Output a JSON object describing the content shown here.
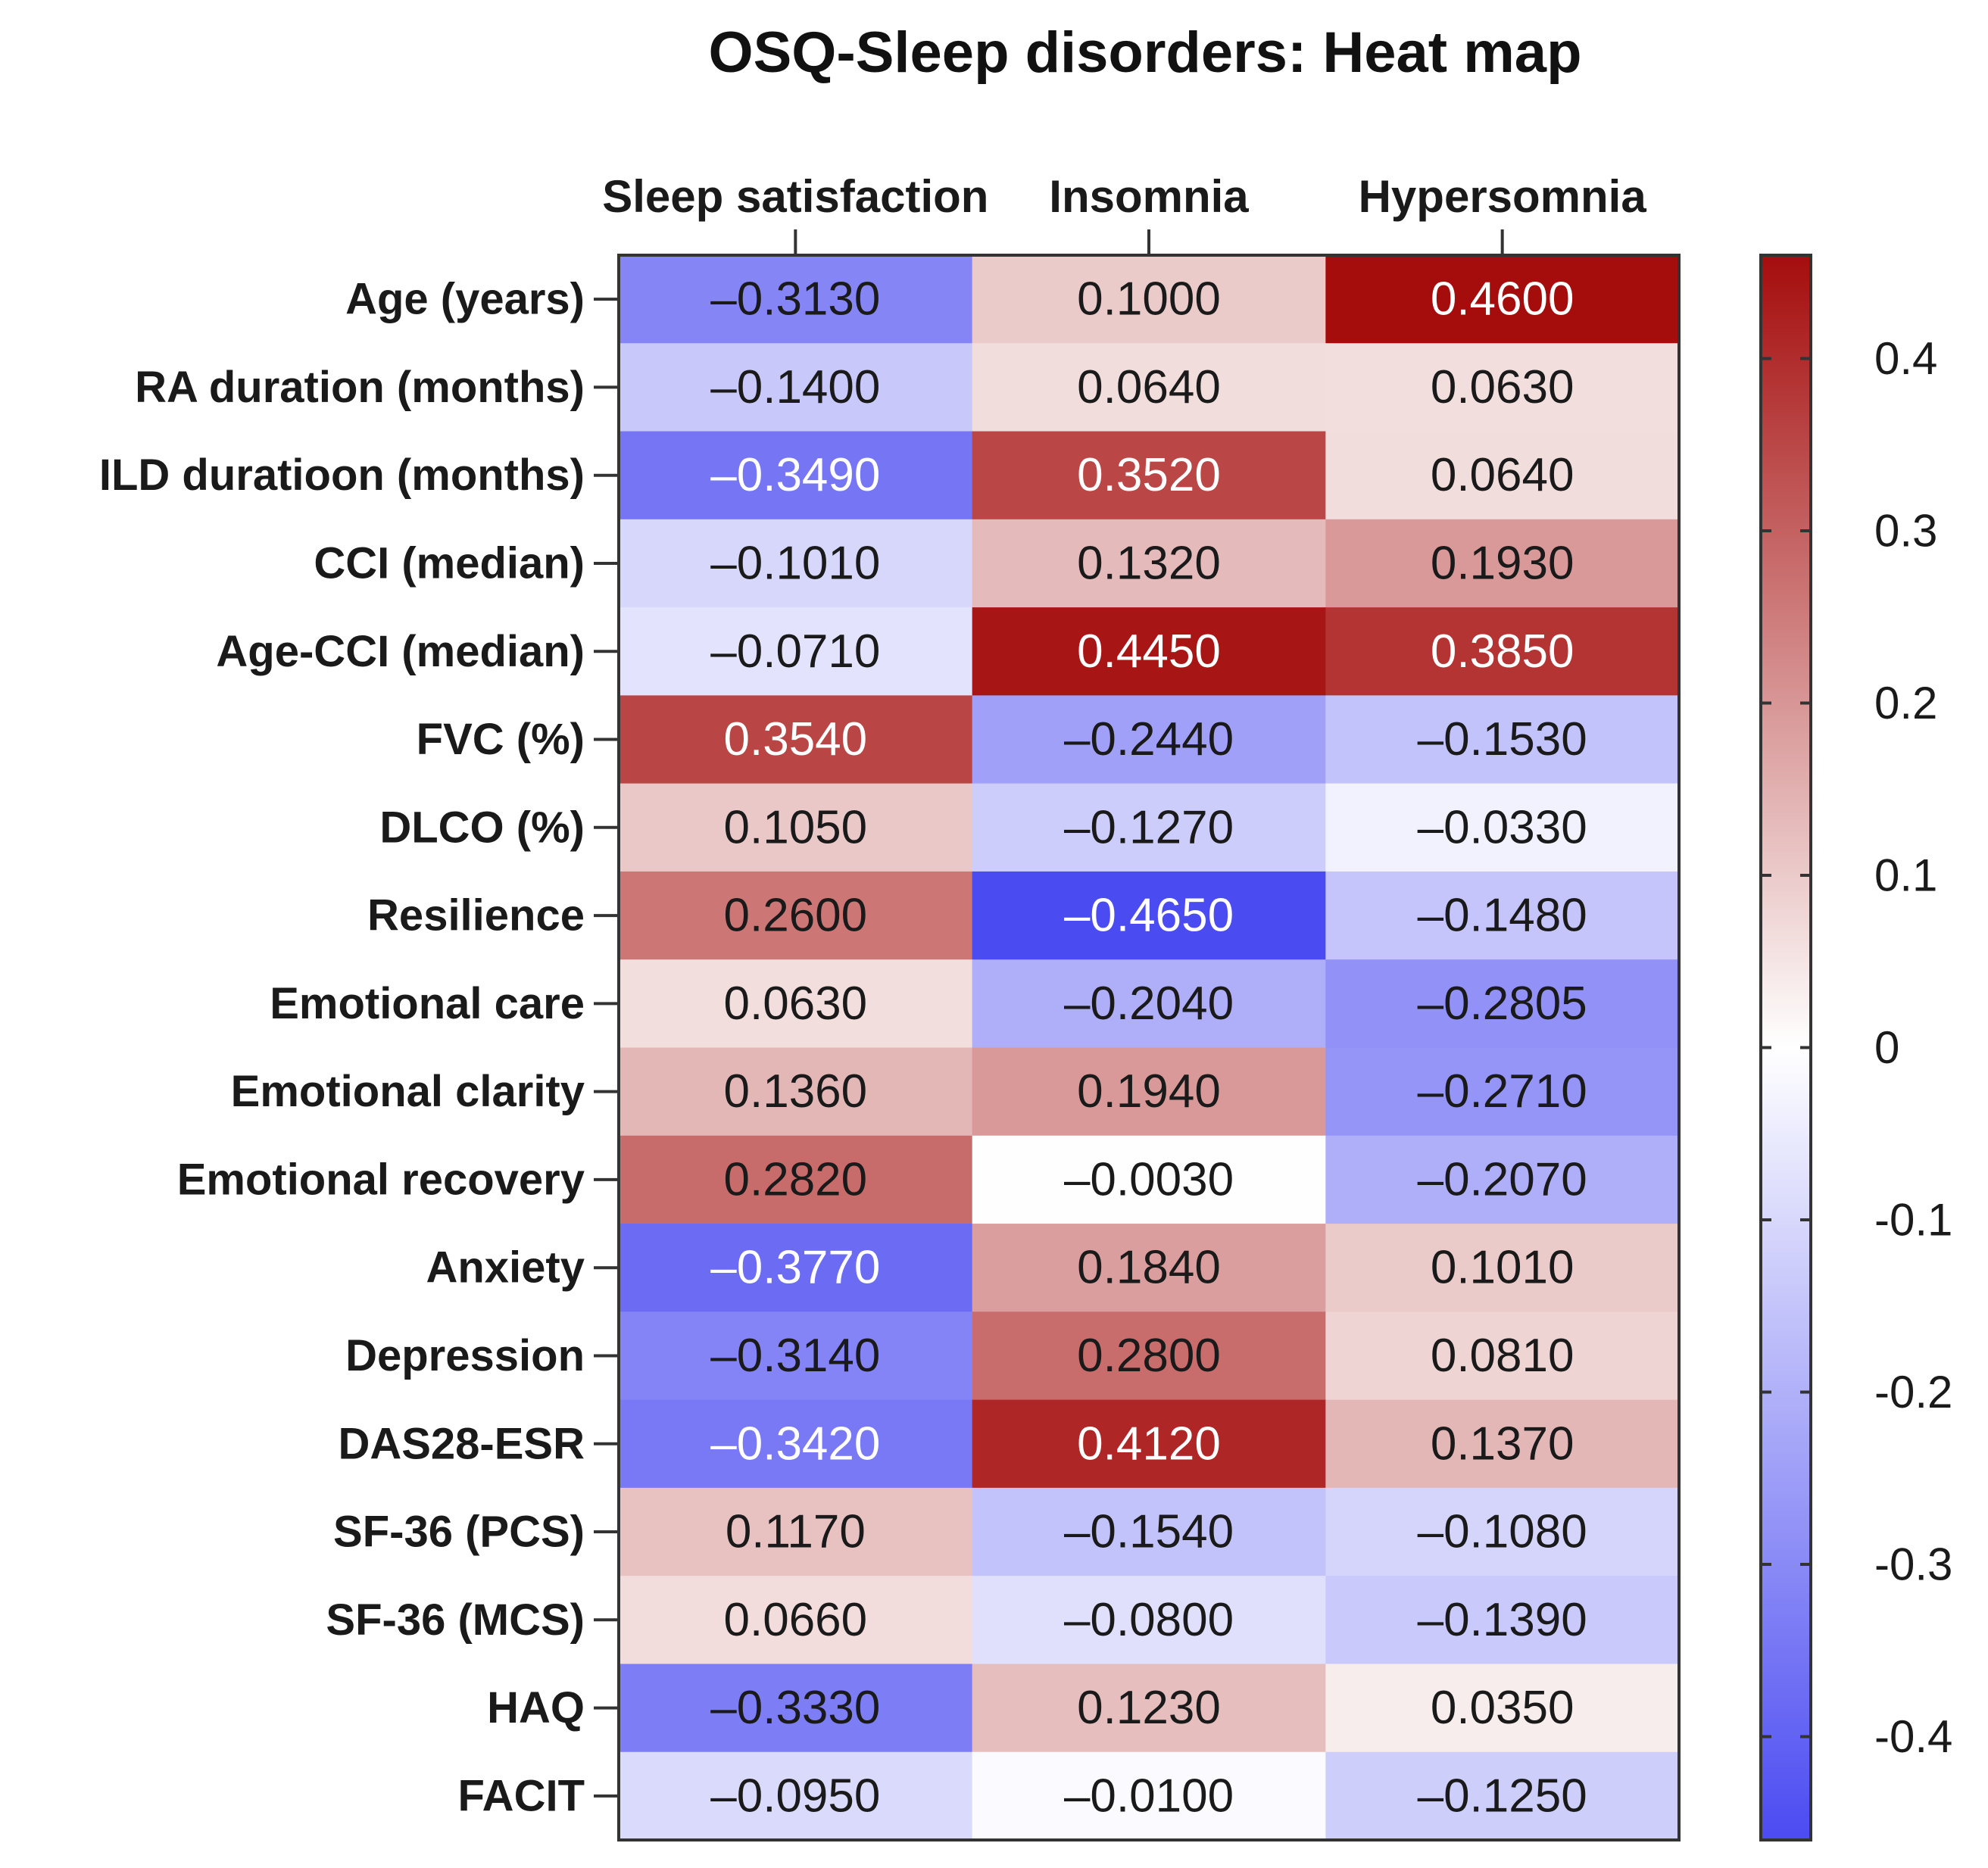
{
  "chart_data": {
    "type": "heatmap",
    "title": "OSQ-Sleep disorders: Heat map",
    "columns": [
      "Sleep satisfaction",
      "Insomnia",
      "Hypersomnia"
    ],
    "rows": [
      "Age (years)",
      "RA duration (months)",
      "ILD duratioon (months)",
      "CCI (median)",
      "Age-CCI (median)",
      "FVC (%)",
      "DLCO (%)",
      "Resilience",
      "Emotional care",
      "Emotional clarity",
      "Emotional recovery",
      "Anxiety",
      "Depression",
      "DAS28-ESR",
      "SF-36 (PCS)",
      "SF-36 (MCS)",
      "HAQ",
      "FACIT"
    ],
    "values": [
      [
        -0.313,
        0.1,
        0.46
      ],
      [
        -0.14,
        0.064,
        0.063
      ],
      [
        -0.349,
        0.352,
        0.064
      ],
      [
        -0.101,
        0.132,
        0.193
      ],
      [
        -0.071,
        0.445,
        0.385
      ],
      [
        0.354,
        -0.244,
        -0.153
      ],
      [
        0.105,
        -0.127,
        -0.033
      ],
      [
        0.26,
        -0.465,
        -0.148
      ],
      [
        0.063,
        -0.204,
        -0.2805
      ],
      [
        0.136,
        0.194,
        -0.271
      ],
      [
        0.282,
        -0.003,
        -0.207
      ],
      [
        -0.377,
        0.184,
        0.101
      ],
      [
        -0.314,
        0.28,
        0.081
      ],
      [
        -0.342,
        0.412,
        0.137
      ],
      [
        0.117,
        -0.154,
        -0.108
      ],
      [
        0.066,
        -0.08,
        -0.139
      ],
      [
        -0.333,
        0.123,
        0.035
      ],
      [
        -0.095,
        -0.01,
        -0.125
      ]
    ],
    "value_labels": [
      [
        "–0.3130",
        "0.1000",
        "0.4600"
      ],
      [
        "–0.1400",
        "0.0640",
        "0.0630"
      ],
      [
        "–0.3490",
        "0.3520",
        "0.0640"
      ],
      [
        "–0.1010",
        "0.1320",
        "0.1930"
      ],
      [
        "–0.0710",
        "0.4450",
        "0.3850"
      ],
      [
        "0.3540",
        "–0.2440",
        "–0.1530"
      ],
      [
        "0.1050",
        "–0.1270",
        "–0.0330"
      ],
      [
        "0.2600",
        "–0.4650",
        "–0.1480"
      ],
      [
        "0.0630",
        "–0.2040",
        "–0.2805"
      ],
      [
        "0.1360",
        "0.1940",
        "–0.2710"
      ],
      [
        "0.2820",
        "–0.0030",
        "–0.2070"
      ],
      [
        "–0.3770",
        "0.1840",
        "0.1010"
      ],
      [
        "–0.3140",
        "0.2800",
        "0.0810"
      ],
      [
        "–0.3420",
        "0.4120",
        "0.1370"
      ],
      [
        "0.1170",
        "–0.1540",
        "–0.1080"
      ],
      [
        "0.0660",
        "–0.0800",
        "–0.1390"
      ],
      [
        "–0.3330",
        "0.1230",
        "0.0350"
      ],
      [
        "–0.0950",
        "–0.0100",
        "–0.1250"
      ]
    ],
    "colorbar": {
      "range": [
        -0.46,
        0.46
      ],
      "ticks": [
        0.4,
        0.3,
        0.2,
        0.1,
        0,
        -0.1,
        -0.2,
        -0.3,
        -0.4
      ],
      "tick_labels": [
        "0.4",
        "0.3",
        "0.2",
        "0.1",
        "0",
        "-0.1",
        "-0.2",
        "-0.3",
        "-0.4"
      ]
    },
    "colors": {
      "negative": "#4b4bf2",
      "neutral": "#ffffff",
      "positive": "#a50d0d"
    }
  }
}
